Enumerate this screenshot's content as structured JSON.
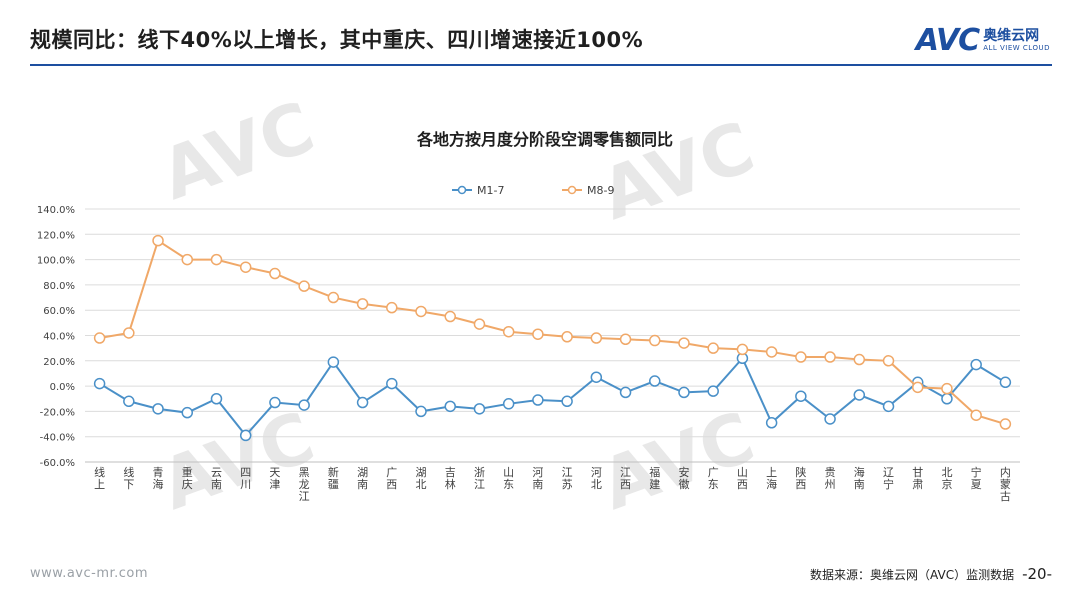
{
  "header": {
    "title": "规模同比：线下40%以上增长，其中重庆、四川增速接近100%",
    "logo_mark": "AVC",
    "logo_cn": "奥维云网",
    "logo_en": "ALL VIEW CLOUD"
  },
  "footer": {
    "website": "www.avc-mr.com",
    "source": "数据来源：奥维云网（AVC）监测数据",
    "page": "-20-"
  },
  "colors": {
    "accent": "#1d4fa0",
    "series_m17": "#4a90c8",
    "series_m89": "#f0a868"
  },
  "chart_data": {
    "type": "line",
    "title": "各地方按月度分阶段空调零售额同比",
    "legend_position": "top",
    "grid": true,
    "ylim": [
      -60,
      140
    ],
    "yticks": [
      "140.0%",
      "120.0%",
      "100.0%",
      "80.0%",
      "60.0%",
      "40.0%",
      "20.0%",
      "0.0%",
      "-20.0%",
      "-40.0%",
      "-60.0%"
    ],
    "categories": [
      "线上",
      "线下",
      "青海",
      "重庆",
      "云南",
      "四川",
      "天津",
      "黑龙江",
      "新疆",
      "湖南",
      "广西",
      "湖北",
      "吉林",
      "浙江",
      "山东",
      "河南",
      "江苏",
      "河北",
      "江西",
      "福建",
      "安徽",
      "广东",
      "山西",
      "上海",
      "陕西",
      "贵州",
      "海南",
      "辽宁",
      "甘肃",
      "北京",
      "宁夏",
      "内蒙古"
    ],
    "series": [
      {
        "name": "M1-7",
        "values": [
          2,
          -12,
          -18,
          -21,
          -10,
          -39,
          -13,
          -15,
          19,
          -13,
          2,
          -20,
          -16,
          -18,
          -14,
          -11,
          -12,
          7,
          -5,
          4,
          -5,
          -4,
          22,
          -29,
          -8,
          -26,
          -7,
          -16,
          3,
          -10,
          17,
          3
        ]
      },
      {
        "name": "M8-9",
        "values": [
          38,
          42,
          115,
          100,
          100,
          94,
          89,
          79,
          70,
          65,
          62,
          59,
          55,
          49,
          43,
          41,
          39,
          38,
          37,
          36,
          34,
          30,
          29,
          27,
          23,
          23,
          21,
          20,
          -1,
          -2,
          -23,
          -30
        ]
      }
    ]
  }
}
